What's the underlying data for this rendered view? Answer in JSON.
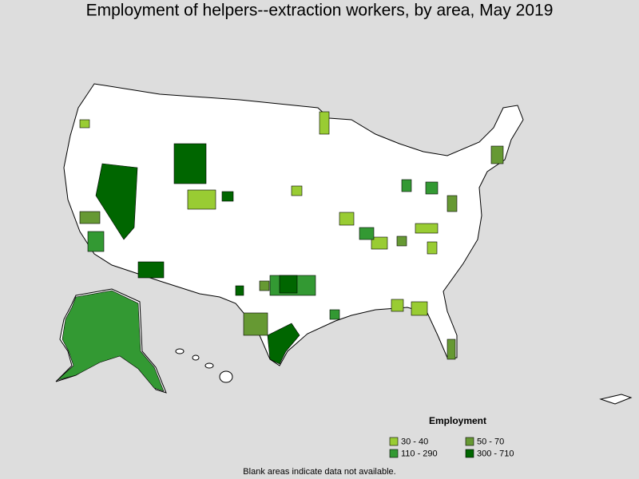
{
  "title": "Employment of helpers--extraction workers, by area, May 2019",
  "legend": {
    "title": "Employment",
    "items": [
      {
        "label": "30 - 40",
        "color": "#99cc33"
      },
      {
        "label": "50 - 70",
        "color": "#669933"
      },
      {
        "label": "110 - 290",
        "color": "#339933"
      },
      {
        "label": "300 - 710",
        "color": "#006600"
      }
    ]
  },
  "note": "Blank areas indicate data not available."
}
